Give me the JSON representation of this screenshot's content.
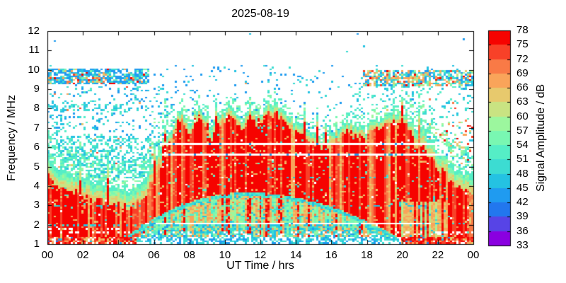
{
  "chart_data": {
    "type": "heatmap",
    "subtype": "radio-spectrogram",
    "title": "2025-08-19",
    "xlabel": "UT Time / hrs",
    "ylabel": "Frequency / MHz",
    "colorbar_label": "Signal Amplitude / dB",
    "x_tick_labels": [
      "00",
      "02",
      "04",
      "06",
      "08",
      "10",
      "12",
      "14",
      "16",
      "18",
      "20",
      "22",
      "00"
    ],
    "x_tick_hours": [
      0,
      2,
      4,
      6,
      8,
      10,
      12,
      14,
      16,
      18,
      20,
      22,
      24
    ],
    "x_range_hours": [
      0,
      24
    ],
    "y_tick_labels": [
      "1",
      "2",
      "3",
      "4",
      "5",
      "6",
      "7",
      "8",
      "9",
      "10",
      "11",
      "12"
    ],
    "y_tick_values": [
      1,
      2,
      3,
      4,
      5,
      6,
      7,
      8,
      9,
      10,
      11,
      12
    ],
    "y_range_mhz": [
      1,
      12
    ],
    "colorbar_tick_labels": [
      "33",
      "36",
      "39",
      "42",
      "45",
      "48",
      "51",
      "54",
      "57",
      "60",
      "63",
      "66",
      "69",
      "72",
      "75",
      "78"
    ],
    "colorbar_range_db": [
      33,
      78
    ],
    "grid": false,
    "background": "#ffffff",
    "frame_color": "#000000",
    "text_color": "#000000",
    "color_scale": [
      {
        "min_db": 33,
        "color": "#8a00e0"
      },
      {
        "min_db": 36,
        "color": "#5744e6"
      },
      {
        "min_db": 39,
        "color": "#2277ee"
      },
      {
        "min_db": 42,
        "color": "#1f9bf0"
      },
      {
        "min_db": 45,
        "color": "#24c2e2"
      },
      {
        "min_db": 48,
        "color": "#3cdcd2"
      },
      {
        "min_db": 51,
        "color": "#55eec6"
      },
      {
        "min_db": 54,
        "color": "#79f7b2"
      },
      {
        "min_db": 57,
        "color": "#9cf79e"
      },
      {
        "min_db": 60,
        "color": "#c9e382"
      },
      {
        "min_db": 63,
        "color": "#e7c96d"
      },
      {
        "min_db": 66,
        "color": "#f9a45a"
      },
      {
        "min_db": 69,
        "color": "#f97a46"
      },
      {
        "min_db": 72,
        "color": "#f84128"
      },
      {
        "min_db": 75,
        "color": "#f60300"
      }
    ],
    "envelope_fmax_mhz": {
      "t0": 0,
      "dt": 0.25,
      "f": [
        5.6,
        5.2,
        5.0,
        4.9,
        4.8,
        4.7,
        4.6,
        4.5,
        4.4,
        4.3,
        4.25,
        4.2,
        4.1,
        4.05,
        4.0,
        3.95,
        3.9,
        3.85,
        3.85,
        3.9,
        4.0,
        4.15,
        4.3,
        4.8,
        5.3,
        5.8,
        6.3,
        6.7,
        7.0,
        7.5,
        8.0,
        7.6,
        7.3,
        7.7,
        8.15,
        7.9,
        7.3,
        6.9,
        7.3,
        7.8,
        8.0,
        8.25,
        8.1,
        7.6,
        7.5,
        7.7,
        7.9,
        7.7,
        7.8,
        8.0,
        8.3,
        8.2,
        8.0,
        7.85,
        7.7,
        7.5,
        7.3,
        7.1,
        6.9,
        6.75,
        6.6,
        6.5,
        6.4,
        6.5,
        6.65,
        6.9,
        7.1,
        7.3,
        7.4,
        7.2,
        7.0,
        6.9,
        6.9,
        7.15,
        7.4,
        7.55,
        7.7,
        7.75,
        7.8,
        7.75,
        7.7,
        7.55,
        7.4,
        7.15,
        6.9,
        6.65,
        6.4,
        6.15,
        5.9,
        5.65,
        5.4,
        5.2,
        5.0,
        4.85,
        4.7,
        4.6,
        4.5
      ]
    },
    "ionogram_arc": {
      "t0": 4.3,
      "t1": 19.8,
      "apex_t": 11.2,
      "apex_f": 3.55,
      "k_left": 0.05,
      "k_right": 0.032,
      "floor": 1.35
    },
    "interference_lines": [
      {
        "f": 6.2,
        "t0": 6.4,
        "t1": 22.25,
        "type": "white",
        "dot_amp": [
          42,
          45
        ],
        "dot_p": 0.04
      },
      {
        "f": 5.65,
        "t0": 6.5,
        "t1": 22.6,
        "type": "white",
        "dot_amp": [
          42,
          46
        ],
        "dot_p": 0.2
      },
      {
        "f": 2.05,
        "t0": 5.5,
        "t1": 21.6,
        "type": "white",
        "dot_amp": [
          42,
          48
        ],
        "dot_p": 0.1
      },
      {
        "f": 2.05,
        "t0": 21.6,
        "t1": 23.5,
        "type": "dots",
        "amp": [
          45,
          50
        ],
        "density": 0.35
      },
      {
        "f": 1.95,
        "t0": 0,
        "t1": 5.6,
        "type": "dots",
        "amp": [
          46,
          51
        ],
        "density": 0.4
      },
      {
        "f": 2.95,
        "t0": 0,
        "t1": 5.6,
        "type": "dots",
        "amp": [
          46,
          51
        ],
        "density": 0.33
      },
      {
        "f": 4.45,
        "t0": 12.5,
        "t1": 22.4,
        "type": "dots",
        "amp": [
          45,
          49
        ],
        "density": 0.3
      },
      {
        "f": 3.0,
        "t0": 15.5,
        "t1": 21.5,
        "type": "dots",
        "amp": [
          45,
          49
        ],
        "density": 0.28
      },
      {
        "f": 9.55,
        "t0": 2.2,
        "t1": 3.6,
        "type": "dots",
        "amp": [
          66,
          75
        ],
        "density": 0.5
      },
      {
        "f": 9.4,
        "t0": 0.8,
        "t1": 3.2,
        "type": "dots",
        "amp": [
          63,
          72
        ],
        "density": 0.35
      },
      {
        "f": 9.6,
        "t0": 18,
        "t1": 21,
        "type": "dots",
        "amp": [
          63,
          72
        ],
        "density": 0.45
      },
      {
        "f": 1.6,
        "t0": 0,
        "t1": 4.6,
        "type": "white-dots",
        "density": 0.35
      },
      {
        "f": 1.8,
        "t0": 0,
        "t1": 4.6,
        "type": "white-dots",
        "density": 0.28
      },
      {
        "f": 1.55,
        "t0": 19.5,
        "t1": 24,
        "type": "white-dots",
        "density": 0.3
      }
    ],
    "sky_bands": [
      {
        "t0": 0,
        "t1": 5.7,
        "f0": 9.25,
        "f1": 10.05,
        "p": 0.78,
        "pal": "band_early"
      },
      {
        "t0": 17.85,
        "t1": 24,
        "f0": 9.2,
        "f1": 10.0,
        "p": 0.72,
        "pal": "band_late"
      },
      {
        "t0": 0,
        "t1": 5.8,
        "f0": 4.4,
        "f1": 5.9,
        "p": 0.5,
        "pal": "cyan"
      },
      {
        "t0": 0,
        "t1": 5.8,
        "f0": 5.9,
        "f1": 6.55,
        "p": 0.32,
        "pal": "cyan"
      },
      {
        "t0": 0,
        "t1": 4.8,
        "f0": 7.85,
        "f1": 8.2,
        "p": 0.45,
        "pal": "cyan"
      },
      {
        "t0": 0,
        "t1": 7.4,
        "f0": 4.4,
        "f1": 9.2,
        "p": 0.15,
        "pal": "cyan_blue"
      },
      {
        "t0": 21.2,
        "t1": 24,
        "f0": 5.0,
        "f1": 7.3,
        "p": 0.22,
        "pal": "late_mix"
      },
      {
        "t0": 17.0,
        "t1": 24,
        "f0": 6.2,
        "f1": 9.2,
        "p": 0.12,
        "pal": "cyan"
      },
      {
        "t0": 0,
        "t1": 24,
        "f0": 1.0,
        "f1": 10.3,
        "p": 0.05,
        "pal": "blue_cyan"
      }
    ],
    "palettes": {
      "blue": [
        [
          42,
          45,
          1
        ]
      ],
      "cyan": [
        [
          45,
          51,
          0.75
        ],
        [
          51,
          54,
          0.25
        ]
      ],
      "blue_cyan": [
        [
          42,
          45,
          0.5
        ],
        [
          45,
          51,
          0.5
        ]
      ],
      "cyan_blue": [
        [
          42,
          45,
          0.35
        ],
        [
          45,
          51,
          0.5
        ],
        [
          51,
          54,
          0.15
        ]
      ],
      "band_early": [
        [
          42,
          45,
          0.5
        ],
        [
          45,
          51,
          0.28
        ],
        [
          54,
          57,
          0.08
        ],
        [
          63,
          69,
          0.08
        ],
        [
          72,
          78,
          0.06
        ]
      ],
      "band_late": [
        [
          45,
          51,
          0.32
        ],
        [
          42,
          45,
          0.2
        ],
        [
          60,
          66,
          0.14
        ],
        [
          66,
          69,
          0.16
        ],
        [
          54,
          60,
          0.1
        ],
        [
          72,
          78,
          0.08
        ]
      ],
      "late_mix": [
        [
          45,
          51,
          0.4
        ],
        [
          54,
          60,
          0.2
        ],
        [
          63,
          69,
          0.25
        ],
        [
          72,
          78,
          0.15
        ]
      ]
    },
    "texture": {
      "seed": 13,
      "cols": 201,
      "rows": 120,
      "col_jitter": 0.45,
      "spike_p": 0.09,
      "spike_min": 0.35,
      "spike_max": 1.1
    }
  }
}
